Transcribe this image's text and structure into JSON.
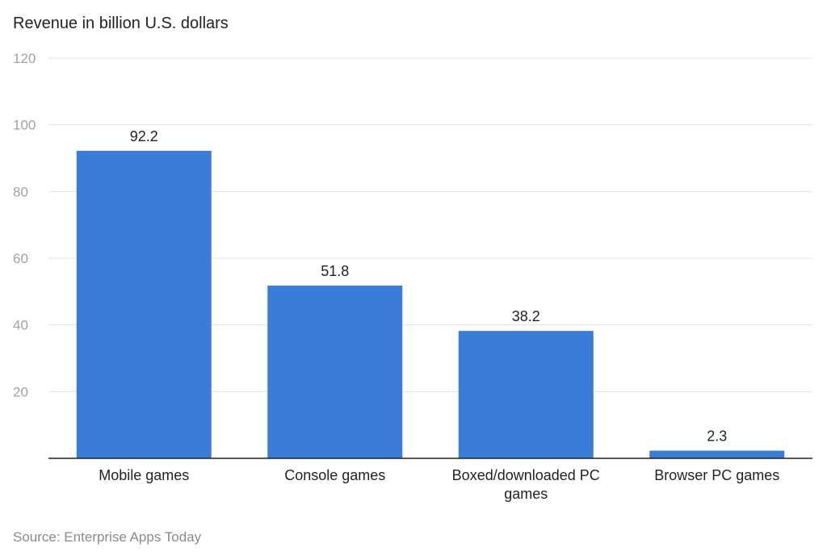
{
  "chart_data": {
    "type": "bar",
    "title": "Revenue in billion U.S. dollars",
    "categories": [
      "Mobile games",
      "Console games",
      "Boxed/downloaded PC games",
      "Browser PC games"
    ],
    "values": [
      92.2,
      51.8,
      38.2,
      2.3
    ],
    "data_labels": [
      "92.2",
      "51.8",
      "38.2",
      "2.3"
    ],
    "xlabel": "",
    "ylabel": "",
    "ylim": [
      0,
      120
    ],
    "yticks": [
      20,
      40,
      60,
      80,
      100,
      120
    ],
    "grid": true,
    "bar_color": "#3a7dd8",
    "source": "Source: Enterprise Apps Today"
  }
}
